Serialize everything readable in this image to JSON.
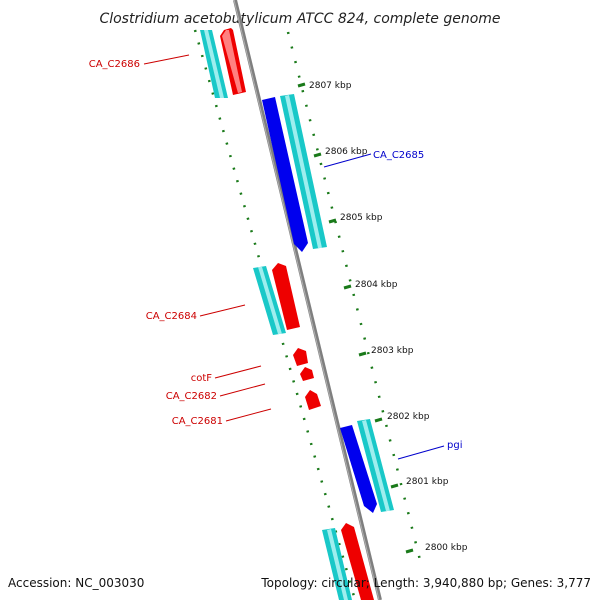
{
  "title": "Clostridium acetobutylicum ATCC 824, complete genome",
  "colors": {
    "backbone": "#808080",
    "cds_forward": "#0000ee",
    "cds_reverse": "#ee0000",
    "gene_track": "#19c8c8",
    "gc_marks": "#1a7a1a",
    "label_reverse": "#cc0000",
    "label_forward": "#0000cc"
  },
  "ticks": [
    {
      "label": "2807 kbp"
    },
    {
      "label": "2806 kbp"
    },
    {
      "label": "2805 kbp"
    },
    {
      "label": "2804 kbp"
    },
    {
      "label": "2803 kbp"
    },
    {
      "label": "2802 kbp"
    },
    {
      "label": "2801 kbp"
    },
    {
      "label": "2800 kbp"
    }
  ],
  "gene_labels": [
    {
      "name": "CA_C2686",
      "strand": "reverse"
    },
    {
      "name": "CA_C2685",
      "strand": "forward"
    },
    {
      "name": "CA_C2684",
      "strand": "reverse"
    },
    {
      "name": "cotF",
      "strand": "reverse"
    },
    {
      "name": "CA_C2682",
      "strand": "reverse"
    },
    {
      "name": "CA_C2681",
      "strand": "reverse"
    },
    {
      "name": "pgi",
      "strand": "forward"
    }
  ],
  "footer": {
    "accession": "Accession: NC_003030",
    "topology": "Topology: circular; Length: 3,940,880 bp; Genes: 3,777"
  }
}
